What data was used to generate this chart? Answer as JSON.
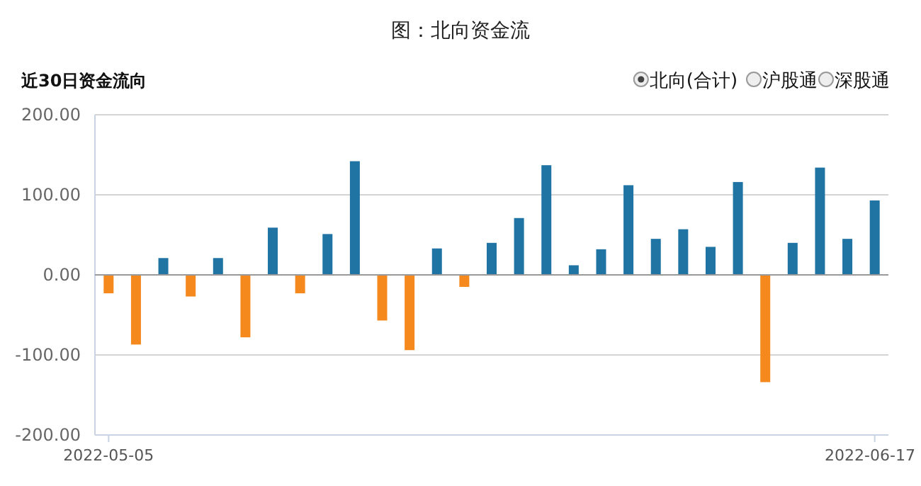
{
  "chart_data": {
    "type": "bar",
    "title": "图：北向资金流",
    "subtitle": "近30日资金流向",
    "annotations": [
      "北向(合计)",
      "沪股通",
      "深股通"
    ],
    "categories": [
      "2022-05-05",
      null,
      null,
      null,
      null,
      null,
      null,
      null,
      null,
      null,
      null,
      null,
      null,
      null,
      null,
      null,
      null,
      null,
      null,
      null,
      null,
      null,
      null,
      null,
      null,
      null,
      null,
      null,
      "2022-06-17"
    ],
    "values": [
      -23,
      -87,
      21,
      -27,
      21,
      -78,
      59,
      -23,
      51,
      142,
      -57,
      -94,
      33,
      -15,
      40,
      71,
      137,
      12,
      32,
      112,
      45,
      57,
      35,
      116,
      -134,
      40,
      134,
      45,
      93
    ],
    "colors": [
      "#f5891e",
      "#f5891e",
      "#1f74a4",
      "#f5891e",
      "#1f74a4",
      "#f5891e",
      "#1f74a4",
      "#f5891e",
      "#1f74a4",
      "#1f74a4",
      "#f5891e",
      "#f5891e",
      "#1f74a4",
      "#f5891e",
      "#1f74a4",
      "#1f74a4",
      "#1f74a4",
      "#1f74a4",
      "#1f74a4",
      "#1f74a4",
      "#1f74a4",
      "#1f74a4",
      "#1f74a4",
      "#1f74a4",
      "#f5891e",
      "#1f74a4",
      "#1f74a4",
      "#1f74a4",
      "#1f74a4"
    ],
    "ylim": [
      -200,
      200
    ],
    "yticks": [
      {
        "value": -200,
        "label": "-200.00"
      },
      {
        "value": -100,
        "label": "-100.00"
      },
      {
        "value": 0,
        "label": "0.00"
      },
      {
        "value": 100,
        "label": "100.00"
      },
      {
        "value": 200,
        "label": "200.00"
      }
    ],
    "grid": "y"
  }
}
